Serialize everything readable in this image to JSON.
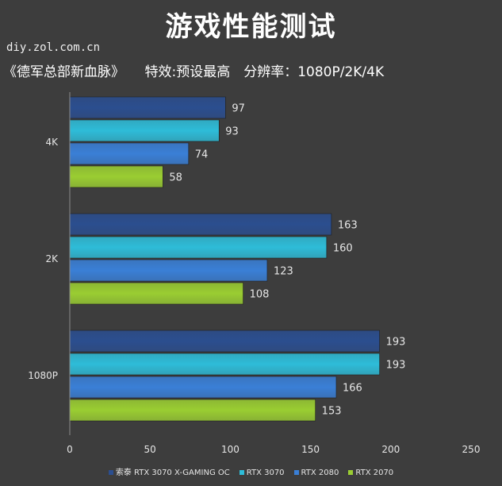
{
  "chart_data": {
    "type": "bar",
    "orientation": "horizontal",
    "title": "游戏性能测试",
    "watermark": "diy.zol.com.cn",
    "subtitle": "《德军总部新血脉》　　特效:预设最高　分辨率：1080P/2K/4K",
    "categories": [
      "4K",
      "2K",
      "1080P"
    ],
    "series": [
      {
        "name": "索泰 RTX 3070 X-GAMING OC",
        "color": "#2b4e8f",
        "values": [
          97,
          163,
          193
        ]
      },
      {
        "name": "RTX 3070",
        "color": "#2ebcd8",
        "values": [
          93,
          160,
          193
        ]
      },
      {
        "name": "RTX 2080",
        "color": "#3a7fd6",
        "values": [
          74,
          123,
          166
        ]
      },
      {
        "name": "RTX 2070",
        "color": "#9acd32",
        "values": [
          58,
          108,
          153
        ]
      }
    ],
    "xlim": [
      0,
      250
    ],
    "xticks": [
      0,
      50,
      100,
      150,
      200,
      250
    ],
    "grid": false,
    "legend_position": "bottom"
  }
}
